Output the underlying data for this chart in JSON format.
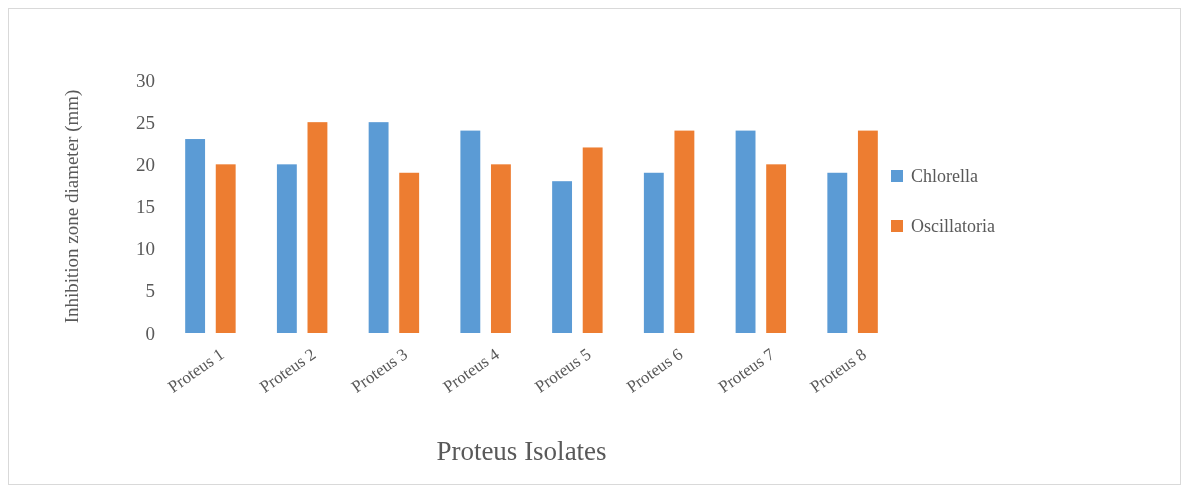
{
  "chart_data": {
    "type": "bar",
    "xlabel": "Proteus Isolates",
    "ylabel": "Inhibition zone diameter (mm)",
    "categories": [
      "Proteus 1",
      "Proteus 2",
      "Proteus 3",
      "Proteus 4",
      "Proteus 5",
      "Proteus 6",
      "Proteus 7",
      "Proteus 8"
    ],
    "series": [
      {
        "name": "Chlorella",
        "color": "#5b9bd5",
        "values": [
          23,
          20,
          25,
          24,
          18,
          19,
          24,
          19
        ]
      },
      {
        "name": "Oscillatoria",
        "color": "#ed7d31",
        "values": [
          20,
          25,
          19,
          20,
          22,
          24,
          20,
          24
        ]
      }
    ],
    "ylim": [
      0,
      30
    ],
    "yticks": [
      0,
      5,
      10,
      15,
      20,
      25,
      30
    ],
    "grid": false,
    "legend": "right"
  }
}
